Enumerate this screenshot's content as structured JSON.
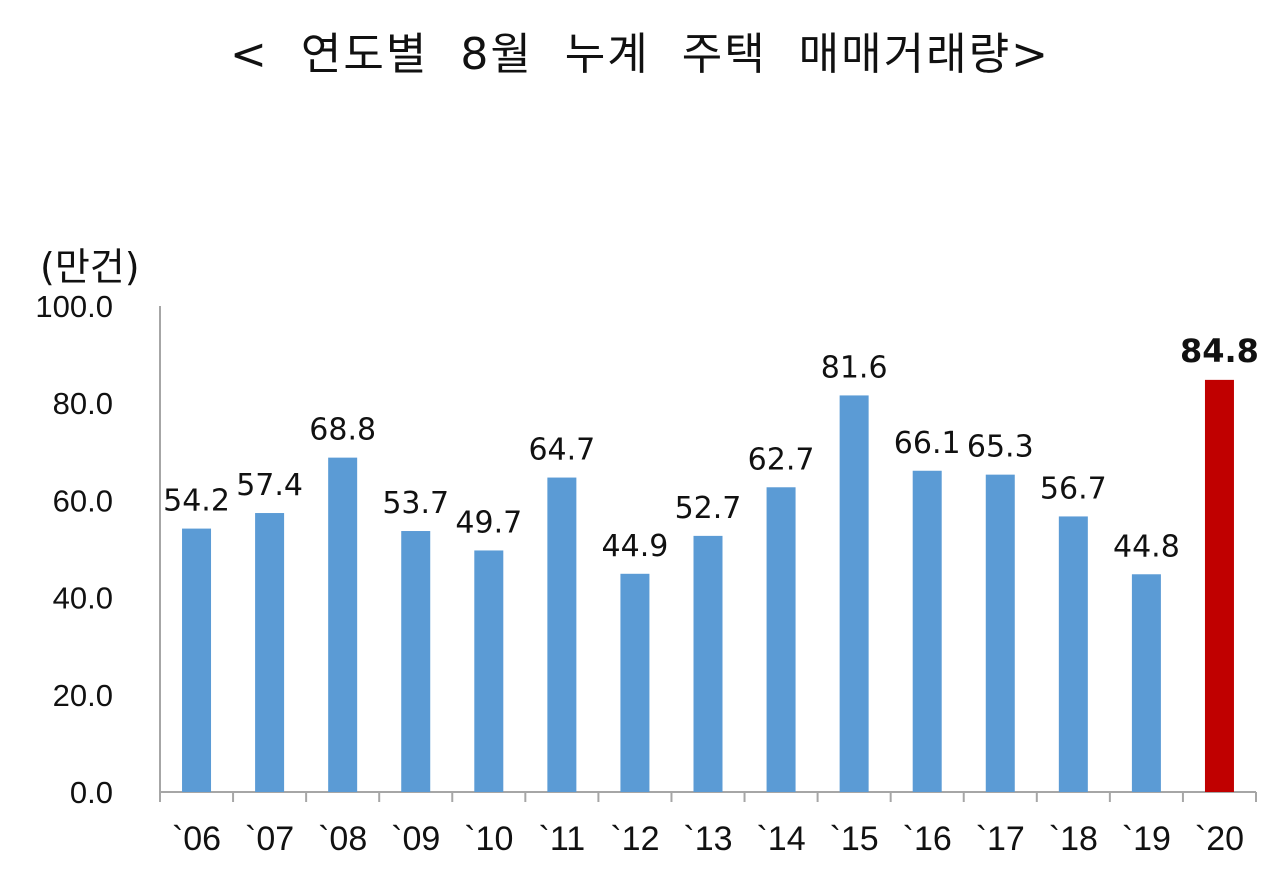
{
  "chart_data": {
    "type": "bar",
    "title": "< 연도별 8월 누계 주택 매매거래량>",
    "unit_label": "(만건)",
    "categories": [
      "`06",
      "`07",
      "`08",
      "`09",
      "`10",
      "`11",
      "`12",
      "`13",
      "`14",
      "`15",
      "`16",
      "`17",
      "`18",
      "`19",
      "`20"
    ],
    "values": [
      54.2,
      57.4,
      68.8,
      53.7,
      49.7,
      64.7,
      44.9,
      52.7,
      62.7,
      81.6,
      66.1,
      65.3,
      56.7,
      44.8,
      84.8
    ],
    "value_labels": [
      "54.2",
      "57.4",
      "68.8",
      "53.7",
      "49.7",
      "64.7",
      "44.9",
      "52.7",
      "62.7",
      "81.6",
      "66.1",
      "65.3",
      "56.7",
      "44.8",
      "84.8"
    ],
    "ylim": [
      0,
      100
    ],
    "yticks": [
      "0.0",
      "20.0",
      "40.0",
      "60.0",
      "80.0",
      "100.0"
    ],
    "highlight_index": 14,
    "colors": {
      "bar": "#5b9bd5",
      "highlight": "#c00000",
      "axis": "#a6a6a6"
    },
    "grid": false,
    "legend": "none"
  }
}
